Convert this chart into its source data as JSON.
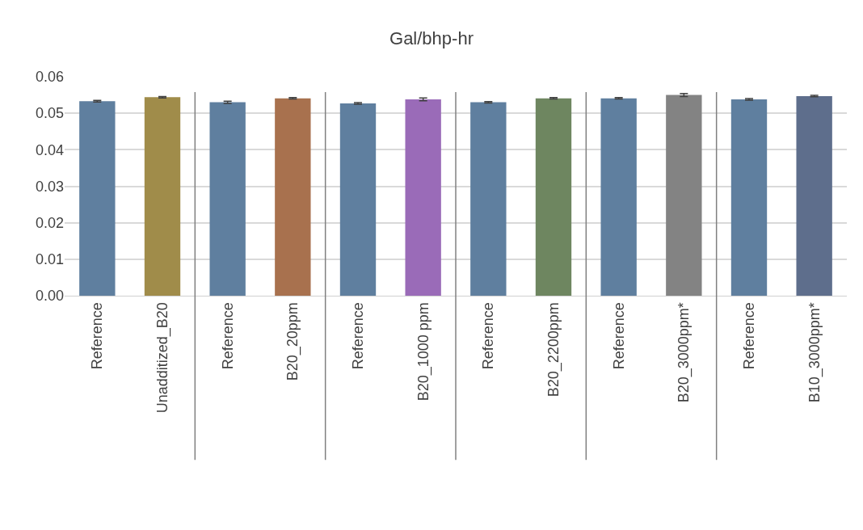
{
  "chart_data": {
    "type": "bar",
    "title": "Gal/bhp-hr",
    "categories": [
      "Reference",
      "Unadditized_B20",
      "Reference",
      "B20_20ppm",
      "Reference",
      "B20_1000 ppm",
      "Reference",
      "B20_2200ppm",
      "Reference",
      "B20_3000ppm*",
      "Reference",
      "B10_3000ppm*"
    ],
    "values": [
      0.0533,
      0.0544,
      0.053,
      0.0541,
      0.0527,
      0.0538,
      0.053,
      0.0541,
      0.0541,
      0.055,
      0.0538,
      0.0547
    ],
    "errors": [
      0.0002,
      0.0002,
      0.0003,
      0.0002,
      0.0002,
      0.0004,
      0.0002,
      0.0002,
      0.0002,
      0.0004,
      0.0002,
      0.0002
    ],
    "colors": [
      "#5f7f9f",
      "#a08c4a",
      "#5f7f9f",
      "#a8714e",
      "#5f7f9f",
      "#9a6bb8",
      "#5f7f9f",
      "#6e8660",
      "#5f7f9f",
      "#838383",
      "#5f7f9f",
      "#5e6e8c"
    ],
    "ylim": [
      0,
      0.06
    ],
    "yticks": [
      {
        "value": 0,
        "label": "0.00"
      },
      {
        "value": 0.01,
        "label": "0.01"
      },
      {
        "value": 0.02,
        "label": "0.02"
      },
      {
        "value": 0.03,
        "label": "0.03"
      },
      {
        "value": 0.04,
        "label": "0.04"
      },
      {
        "value": 0.05,
        "label": "0.05"
      },
      {
        "value": 0.06,
        "label": "0.06"
      }
    ],
    "grid": "y"
  }
}
